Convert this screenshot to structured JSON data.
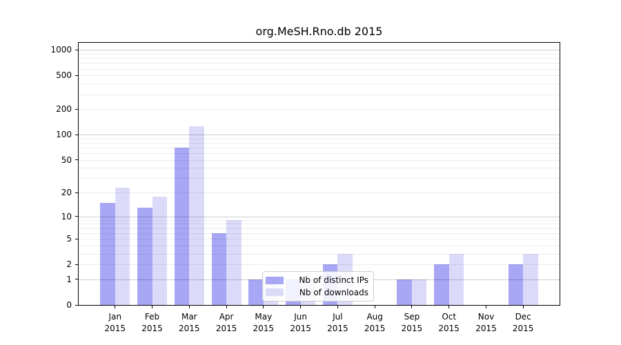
{
  "title": "org.MeSH.Rno.db 2015",
  "chart_data": {
    "type": "bar",
    "title": "org.MeSH.Rno.db 2015",
    "year_label": "2015",
    "categories": [
      "Jan",
      "Feb",
      "Mar",
      "Apr",
      "May",
      "Jun",
      "Jul",
      "Aug",
      "Sep",
      "Oct",
      "Nov",
      "Dec"
    ],
    "series": [
      {
        "name": "Nb of distinct IPs",
        "color": "#a7a7f5",
        "values": [
          15,
          13,
          70,
          6,
          1,
          1,
          2,
          0,
          1,
          2,
          0,
          2
        ]
      },
      {
        "name": "Nb of downloads",
        "color": "#dbdbf9",
        "values": [
          23,
          18,
          125,
          9,
          1,
          1,
          3,
          0,
          1,
          3,
          0,
          3
        ]
      }
    ],
    "yticks": [
      0,
      1,
      2,
      5,
      10,
      20,
      50,
      100,
      200,
      500,
      1000
    ],
    "xlabel": "",
    "ylabel": "",
    "scale": "log10(value+1)",
    "ylim": [
      0,
      1260
    ],
    "grid": true,
    "legend_position": "lower center",
    "colors": {
      "axis": "#000000",
      "background": "#ffffff",
      "grid_major": "#cccccc",
      "grid_minor": "#ececec"
    }
  }
}
